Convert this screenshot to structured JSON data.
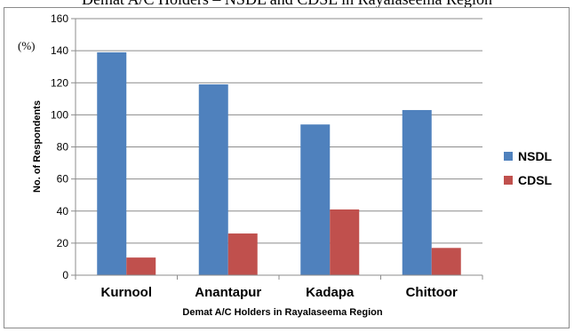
{
  "caption": "Demat A/C Holders – NSDL and CDSL in Rayalaseema Region",
  "chart_data": {
    "type": "bar",
    "categories": [
      "Kurnool",
      "Anantapur",
      "Kadapa",
      "Chittoor"
    ],
    "series": [
      {
        "name": "NSDL",
        "values": [
          139,
          119,
          94,
          103
        ],
        "color": "#4f81bd"
      },
      {
        "name": "CDSL",
        "values": [
          11,
          26,
          41,
          17
        ],
        "color": "#c0504d"
      }
    ],
    "title": "",
    "xlabel": "Demat A/C Holders in Rayalaseema Region",
    "ylabel": "No. of Respondents",
    "unit_label": "(%)",
    "ylim": [
      0,
      160
    ],
    "yticks": [
      0,
      20,
      40,
      60,
      80,
      100,
      120,
      140,
      160
    ],
    "grid": true,
    "legend_position": "right"
  }
}
